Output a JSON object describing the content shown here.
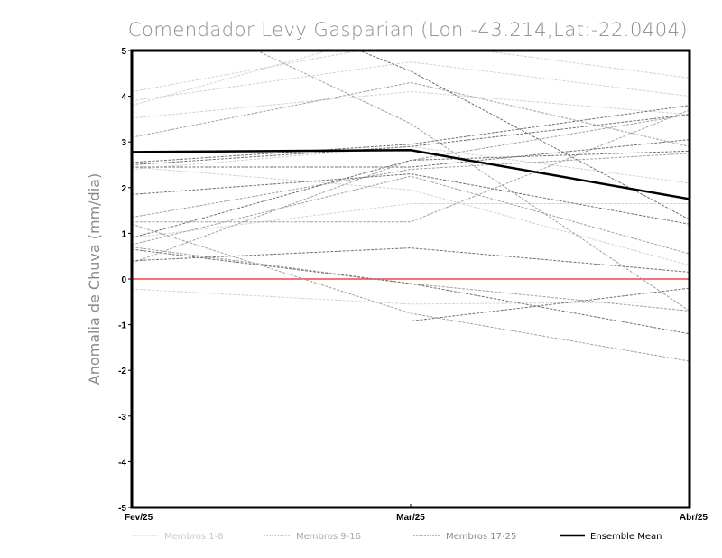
{
  "chart_data": {
    "type": "line",
    "title": "Comendador Levy Gasparian (Lon:-43.214,Lat:-22.0404)",
    "xlabel": "",
    "ylabel": "Anomalia de Chuva (mm/dia)",
    "categories": [
      "Fev/25",
      "Mar/25",
      "Abr/25"
    ],
    "ylim": [
      -5,
      5
    ],
    "yticks": [
      "5",
      "4",
      "3",
      "2",
      "1",
      "0",
      "-1",
      "-2",
      "-3",
      "-4",
      "-5"
    ],
    "ytick_values": [
      5,
      4,
      3,
      2,
      1,
      0,
      -1,
      -2,
      -3,
      -4,
      -5
    ],
    "reference_line": {
      "value": 0,
      "color": "#ff4040"
    },
    "legend_position": "bottom",
    "groups": [
      {
        "name": "Membros 1-8",
        "color": "#d2d2d2",
        "style": "dashed",
        "members": [
          [
            4.1,
            5.2,
            4.4
          ],
          [
            3.9,
            4.75,
            4.0
          ],
          [
            3.52,
            4.1,
            3.6
          ],
          [
            2.45,
            1.95,
            0.3
          ],
          [
            0.9,
            1.65,
            1.65
          ],
          [
            -0.22,
            -0.55,
            -0.5
          ],
          [
            3.8,
            5.5,
            5.2
          ],
          [
            2.4,
            2.9,
            2.1
          ]
        ]
      },
      {
        "name": "Membros 9-16",
        "color": "#a0a0a0",
        "style": "dashed",
        "members": [
          [
            0.35,
            2.6,
            3.6
          ],
          [
            1.25,
            1.25,
            3.7
          ],
          [
            0.7,
            -0.1,
            -0.7
          ],
          [
            3.1,
            4.3,
            2.9
          ],
          [
            0.75,
            2.25,
            0.55
          ],
          [
            1.35,
            2.4,
            2.75
          ],
          [
            1.2,
            -0.75,
            -1.8
          ],
          [
            6.3,
            3.4,
            -0.7
          ]
        ]
      },
      {
        "name": "Membros 17-25",
        "color": "#707070",
        "style": "dashed",
        "members": [
          [
            2.55,
            2.95,
            3.8
          ],
          [
            2.5,
            2.9,
            3.6
          ],
          [
            2.45,
            2.45,
            3.05
          ],
          [
            1.85,
            2.3,
            1.2
          ],
          [
            0.4,
            0.68,
            0.15
          ],
          [
            -0.92,
            -0.92,
            -0.2
          ],
          [
            0.65,
            -0.1,
            -1.2
          ],
          [
            7.0,
            4.55,
            1.3
          ],
          [
            0.9,
            2.6,
            2.8
          ]
        ]
      }
    ],
    "ensemble_mean": {
      "name": "Ensemble Mean",
      "color": "#000000",
      "values": [
        2.78,
        2.82,
        1.75
      ]
    }
  }
}
